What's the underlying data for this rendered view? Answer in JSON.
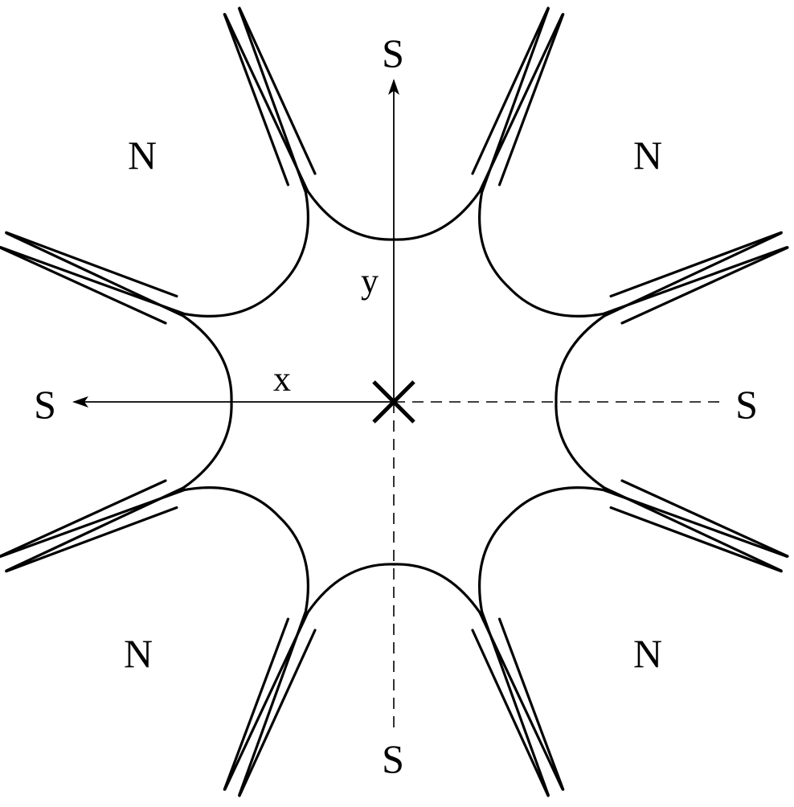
{
  "labels": {
    "pole_top_left": "N",
    "pole_top_right": "N",
    "pole_bottom_left": "N",
    "pole_bottom_right": "N",
    "pole_top": "S",
    "pole_bottom": "S",
    "pole_left": "S",
    "pole_right": "S",
    "axis_x": "x",
    "axis_y": "y"
  }
}
